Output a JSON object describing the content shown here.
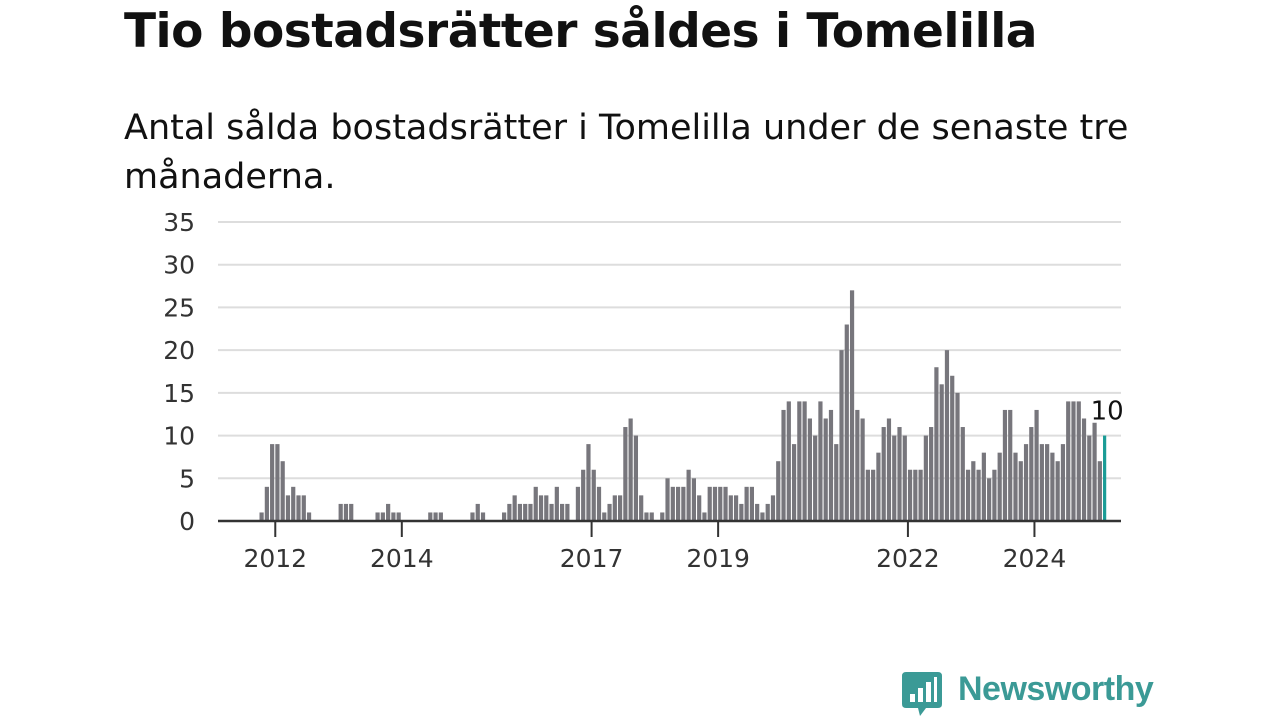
{
  "title": "Tio bostadsrätter såldes i Tomelilla",
  "subtitle": "Antal sålda bostadsrätter i Tomelilla under de senaste tre månaderna.",
  "brand": {
    "name": "Newsworthy",
    "color": "#3b9a96",
    "icon": "newsworthy-chat-bars-icon"
  },
  "chart_data": {
    "type": "bar",
    "title": "Tio bostadsrätter såldes i Tomelilla",
    "xlabel": "",
    "ylabel": "",
    "ylim": [
      0,
      35
    ],
    "grid": true,
    "yticks": [
      0,
      5,
      10,
      15,
      20,
      25,
      30,
      35
    ],
    "xticks": [
      "2012",
      "2014",
      "2017",
      "2019",
      "2022",
      "2024"
    ],
    "x_start": "2011-10",
    "x_end": "2025-03",
    "bar_color": "#77767c",
    "highlight_color": "#1a9c96",
    "highlight_label": "10",
    "values": [
      1,
      4,
      9,
      9,
      7,
      3,
      4,
      3,
      3,
      1,
      0,
      0,
      0,
      0,
      0,
      2,
      2,
      2,
      0,
      0,
      0,
      0,
      1,
      1,
      2,
      1,
      1,
      0,
      0,
      0,
      0,
      0,
      1,
      1,
      1,
      0,
      0,
      0,
      0,
      0,
      1,
      2,
      1,
      0,
      0,
      0,
      1,
      2,
      3,
      2,
      2,
      2,
      4,
      3,
      3,
      2,
      4,
      2,
      2,
      0,
      4,
      6,
      9,
      6,
      4,
      1,
      2,
      3,
      3,
      11,
      12,
      10,
      3,
      1,
      1,
      0,
      1,
      5,
      4,
      4,
      4,
      6,
      5,
      3,
      1,
      4,
      4,
      4,
      4,
      3,
      3,
      2,
      4,
      4,
      2,
      1,
      2,
      3,
      7,
      13,
      14,
      9,
      14,
      14,
      12,
      10,
      14,
      12,
      13,
      9,
      20,
      23,
      27,
      13,
      12,
      6,
      6,
      8,
      11,
      12,
      10,
      11,
      10,
      6,
      6,
      6,
      10,
      11,
      18,
      16,
      20,
      17,
      15,
      11,
      6,
      7,
      6,
      8,
      5,
      6,
      8,
      13,
      13,
      8,
      7,
      9,
      11,
      13,
      9,
      9,
      8,
      7,
      9,
      14,
      14,
      14,
      12,
      10,
      11.5,
      7,
      10
    ]
  }
}
